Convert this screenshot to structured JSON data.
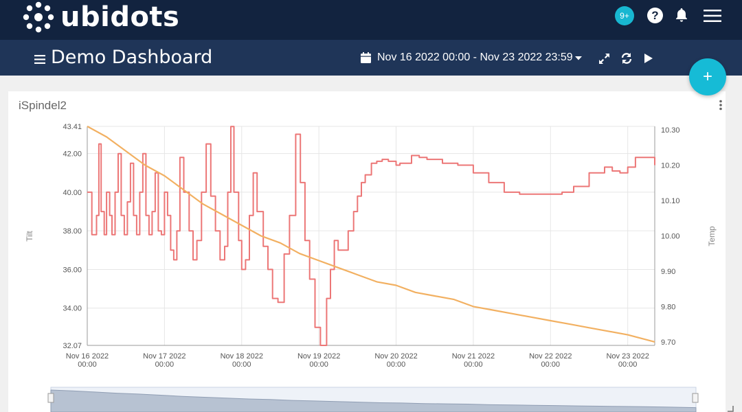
{
  "app": {
    "name": "ubidots",
    "notifications_badge": "9+",
    "help_glyph": "?",
    "icons": [
      "logo-dots-icon",
      "help-icon",
      "bell-icon",
      "menu-icon"
    ]
  },
  "dashboard": {
    "title": "Demo Dashboard",
    "date_range": "Nov 16 2022 00:00 - Nov 23 2022 23:59",
    "icons": [
      "hamburger-icon",
      "calendar-icon",
      "chevron-down-icon",
      "expand-icon",
      "refresh-icon",
      "play-icon"
    ],
    "add_button": "+"
  },
  "widget": {
    "title": "iSpindel2"
  },
  "colors": {
    "topbar": "#12233f",
    "subbar": "#1f3558",
    "accent": "#18b7d1",
    "tilt_series": "#ec7676",
    "temp_series": "#f2b061"
  },
  "chart_data": {
    "type": "line",
    "x_categories": [
      "Nov 16 2022 00:00",
      "Nov 17 2022 00:00",
      "Nov 18 2022 00:00",
      "Nov 19 2022 00:00",
      "Nov 20 2022 00:00",
      "Nov 21 2022 00:00",
      "Nov 22 2022 00:00",
      "Nov 23 2022 00:00"
    ],
    "x_tick_labels": [
      {
        "date": "Nov 16 2022",
        "time": "00:00"
      },
      {
        "date": "Nov 17 2022",
        "time": "00:00"
      },
      {
        "date": "Nov 18 2022",
        "time": "00:00"
      },
      {
        "date": "Nov 19 2022",
        "time": "00:00"
      },
      {
        "date": "Nov 20 2022",
        "time": "00:00"
      },
      {
        "date": "Nov 21 2022",
        "time": "00:00"
      },
      {
        "date": "Nov 22 2022",
        "time": "00:00"
      },
      {
        "date": "Nov 23 2022",
        "time": "00:00"
      }
    ],
    "x_range_days": [
      0,
      7.35
    ],
    "y_left": {
      "label": "Tilt",
      "range": [
        32.07,
        43.41
      ],
      "tick_labels": [
        "43.41",
        "42.00",
        "40.00",
        "38.00",
        "36.00",
        "34.00",
        "32.07"
      ],
      "tick_values": [
        43.41,
        42.0,
        40.0,
        38.0,
        36.0,
        34.0,
        32.07
      ]
    },
    "y_right": {
      "label": "Temp",
      "range": [
        9.69,
        10.31
      ],
      "tick_labels": [
        "10.30",
        "10.20",
        "10.10",
        "10.00",
        "9.90",
        "9.80",
        "9.70"
      ],
      "tick_values": [
        10.3,
        10.2,
        10.1,
        10.0,
        9.9,
        9.8,
        9.7
      ]
    },
    "grid": true,
    "series": [
      {
        "axis": "left",
        "x_days": [
          0,
          0.06,
          0.12,
          0.15,
          0.18,
          0.22,
          0.25,
          0.29,
          0.32,
          0.36,
          0.4,
          0.44,
          0.48,
          0.52,
          0.56,
          0.6,
          0.64,
          0.68,
          0.72,
          0.76,
          0.8,
          0.84,
          0.88,
          0.92,
          0.96,
          1.0,
          1.04,
          1.08,
          1.12,
          1.16,
          1.2,
          1.25,
          1.32,
          1.37,
          1.42,
          1.48,
          1.54,
          1.6,
          1.66,
          1.72,
          1.78,
          1.82,
          1.86,
          1.9,
          1.96,
          2.0,
          2.05,
          2.1,
          2.15,
          2.2,
          2.28,
          2.34,
          2.4,
          2.47,
          2.55,
          2.62,
          2.7,
          2.76,
          2.82,
          2.88,
          2.95,
          3.02,
          3.06,
          3.1,
          3.15,
          3.2,
          3.25,
          3.3,
          3.38,
          3.45,
          3.5,
          3.55,
          3.6,
          3.68,
          3.75,
          3.82,
          3.9,
          4.0,
          4.05,
          4.2,
          4.3,
          4.4,
          4.6,
          4.8,
          5.0,
          5.2,
          5.4,
          5.6,
          5.8,
          6.0,
          6.15,
          6.3,
          6.5,
          6.7,
          6.8,
          6.9,
          7.0,
          7.1,
          7.35
        ],
        "values": [
          40.0,
          37.8,
          38.8,
          42.5,
          39.0,
          37.8,
          40.0,
          38.8,
          37.8,
          40.0,
          42.0,
          38.8,
          37.8,
          39.5,
          41.5,
          38.8,
          37.8,
          40.0,
          42.0,
          38.8,
          37.8,
          39.0,
          41.0,
          38.0,
          37.8,
          40.0,
          38.8,
          37.0,
          36.5,
          38.0,
          41.8,
          40.0,
          38.0,
          36.5,
          37.5,
          40.0,
          42.5,
          39.8,
          38.0,
          36.5,
          37.2,
          40.0,
          43.4,
          40.0,
          37.5,
          36.0,
          36.5,
          38.8,
          41.0,
          39.0,
          37.2,
          36.0,
          34.5,
          34.3,
          36.8,
          38.8,
          43.0,
          40.5,
          37.5,
          35.5,
          33.0,
          32.07,
          32.07,
          34.5,
          36.0,
          37.5,
          37.0,
          37.0,
          38.0,
          39.0,
          39.8,
          40.5,
          40.9,
          41.5,
          41.6,
          41.7,
          41.6,
          41.4,
          41.5,
          41.9,
          41.8,
          41.7,
          41.5,
          41.4,
          41.0,
          40.5,
          40.0,
          39.9,
          39.9,
          39.9,
          40.0,
          40.3,
          41.0,
          41.3,
          41.1,
          41.0,
          41.3,
          41.8,
          41.4
        ]
      },
      {
        "axis": "right",
        "x_days": [
          0,
          0.25,
          0.5,
          0.75,
          1.0,
          1.25,
          1.5,
          1.75,
          2.0,
          2.25,
          2.5,
          2.75,
          3.0,
          3.25,
          3.5,
          3.75,
          4.0,
          4.25,
          4.5,
          4.75,
          5.0,
          5.25,
          5.5,
          5.75,
          6.0,
          6.25,
          6.5,
          6.75,
          7.0,
          7.35
        ],
        "values": [
          10.31,
          10.28,
          10.24,
          10.2,
          10.17,
          10.13,
          10.09,
          10.06,
          10.03,
          10.0,
          9.98,
          9.95,
          9.93,
          9.91,
          9.89,
          9.87,
          9.86,
          9.84,
          9.83,
          9.82,
          9.8,
          9.79,
          9.78,
          9.77,
          9.76,
          9.75,
          9.74,
          9.73,
          9.72,
          9.7
        ]
      }
    ],
    "navigator": true
  }
}
